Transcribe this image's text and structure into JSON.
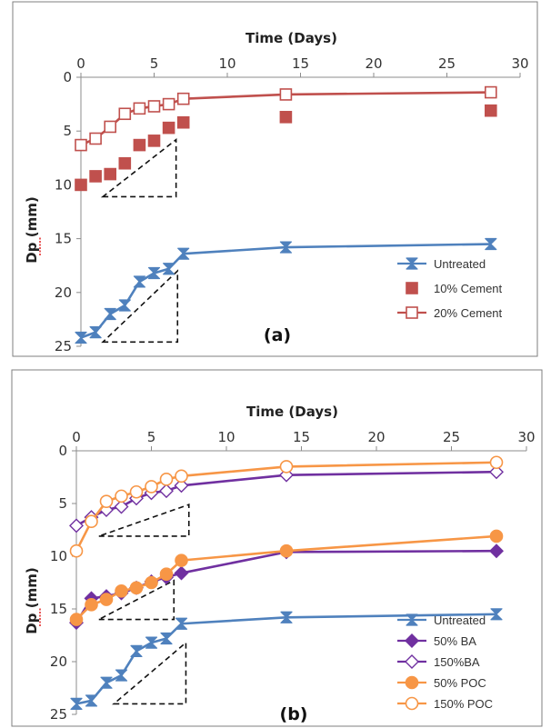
{
  "colors": {
    "untreated": "#4f81bd",
    "cement10": "#c0504d",
    "cement20": "#c0504d",
    "ba": "#7030a0",
    "poc": "#f79646"
  },
  "chart_data": [
    {
      "type": "line",
      "panel_label": "(a)",
      "xlabel": "Time (Days)",
      "ylabel": "Dp (mm)",
      "xlim": [
        0,
        30
      ],
      "ylim": [
        0,
        25
      ],
      "y_reversed": true,
      "x_ticks": [
        0,
        5,
        10,
        15,
        20,
        25,
        30
      ],
      "y_ticks": [
        0,
        5,
        10,
        15,
        20,
        25
      ],
      "legend_position": "bottom-right",
      "series": [
        {
          "name": "Untreated",
          "marker": "hourglass",
          "color": "#4f81bd",
          "x": [
            0,
            1,
            2,
            3,
            4,
            5,
            6,
            7,
            14,
            28
          ],
          "y": [
            24.2,
            23.7,
            22.0,
            21.2,
            19.0,
            18.2,
            17.8,
            16.4,
            15.8,
            15.5
          ]
        },
        {
          "name": "10% Cement",
          "marker": "square-filled",
          "color": "#c0504d",
          "line": false,
          "x": [
            0,
            1,
            2,
            3,
            4,
            5,
            6,
            7,
            14,
            28
          ],
          "y": [
            10.0,
            9.2,
            9.0,
            8.0,
            6.3,
            5.9,
            4.7,
            4.2,
            3.7,
            3.1
          ]
        },
        {
          "name": "20% Cement",
          "marker": "square-open",
          "color": "#c0504d",
          "x": [
            0,
            1,
            2,
            3,
            4,
            5,
            6,
            7,
            14,
            28
          ],
          "y": [
            6.3,
            5.7,
            4.6,
            3.4,
            2.9,
            2.7,
            2.5,
            2.0,
            1.6,
            1.4
          ]
        }
      ]
    },
    {
      "type": "line",
      "panel_label": "(b)",
      "xlabel": "Time (Days)",
      "ylabel": "Dp (mm)",
      "xlim": [
        0,
        30
      ],
      "ylim": [
        0,
        25
      ],
      "y_reversed": true,
      "x_ticks": [
        0,
        5,
        10,
        15,
        20,
        25,
        30
      ],
      "y_ticks": [
        0,
        5,
        10,
        15,
        20,
        25
      ],
      "legend_position": "bottom-right",
      "series": [
        {
          "name": "Untreated",
          "marker": "hourglass",
          "color": "#4f81bd",
          "x": [
            0,
            1,
            2,
            3,
            4,
            5,
            6,
            7,
            14,
            28
          ],
          "y": [
            24.0,
            23.7,
            22.0,
            21.3,
            19.0,
            18.2,
            17.8,
            16.4,
            15.8,
            15.5
          ]
        },
        {
          "name": "50% BA",
          "marker": "diamond-filled",
          "color": "#7030a0",
          "x": [
            0,
            1,
            2,
            3,
            4,
            5,
            6,
            7,
            14,
            28
          ],
          "y": [
            16.3,
            14.0,
            13.8,
            13.5,
            13.0,
            12.4,
            12.0,
            11.6,
            9.6,
            9.5
          ]
        },
        {
          "name": "150%BA",
          "marker": "diamond-open",
          "color": "#7030a0",
          "x": [
            0,
            1,
            2,
            3,
            4,
            5,
            6,
            7,
            14,
            28
          ],
          "y": [
            7.1,
            6.3,
            5.6,
            5.3,
            4.5,
            4.0,
            3.8,
            3.3,
            2.3,
            2.0
          ]
        },
        {
          "name": "50% POC",
          "marker": "circle-filled",
          "color": "#f79646",
          "x": [
            0,
            1,
            2,
            3,
            4,
            5,
            6,
            7,
            14,
            28
          ],
          "y": [
            16.0,
            14.6,
            14.1,
            13.3,
            13.0,
            12.5,
            11.7,
            10.4,
            9.5,
            8.1
          ]
        },
        {
          "name": "150% POC",
          "marker": "circle-open",
          "color": "#f79646",
          "x": [
            0,
            1,
            2,
            3,
            4,
            5,
            6,
            7,
            14,
            28
          ],
          "y": [
            9.5,
            6.7,
            4.8,
            4.3,
            3.9,
            3.4,
            2.7,
            2.4,
            1.5,
            1.1
          ]
        }
      ]
    }
  ]
}
